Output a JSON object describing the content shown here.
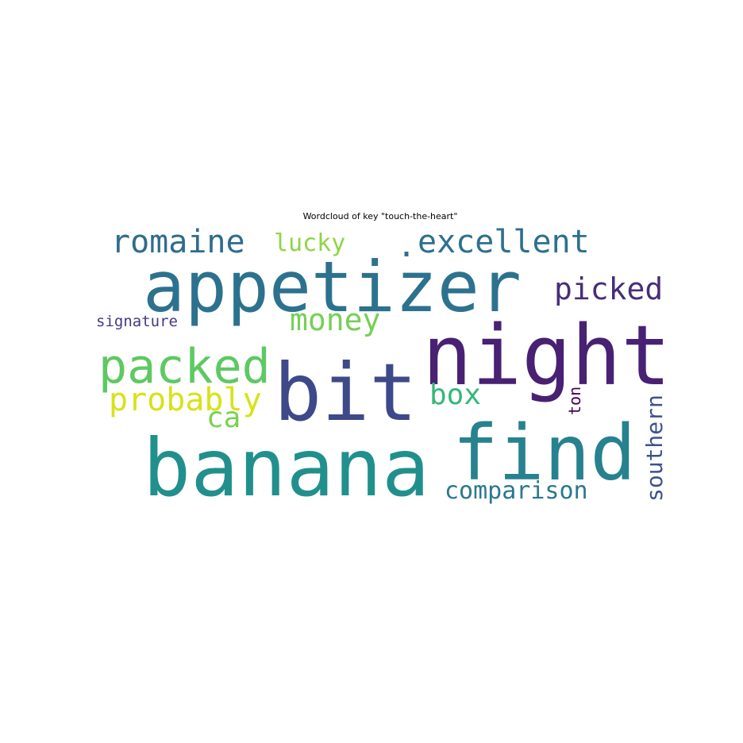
{
  "title": "Wordcloud of key \"touch-the-heart\"",
  "words": [
    {
      "key": "appetizer",
      "text": "appetizer",
      "color": "#2c728e"
    },
    {
      "key": "banana",
      "text": "banana",
      "color": "#21908d"
    },
    {
      "key": "night",
      "text": "night",
      "color": "#482173"
    },
    {
      "key": "bit",
      "text": "bit",
      "color": "#3e4989"
    },
    {
      "key": "find",
      "text": "find",
      "color": "#26828e"
    },
    {
      "key": "packed",
      "text": "packed",
      "color": "#5ec962"
    },
    {
      "key": "romaine",
      "text": "romaine",
      "color": "#2f6c8e"
    },
    {
      "key": "excellent",
      "text": "excellent",
      "color": "#2d708e"
    },
    {
      "key": "picked",
      "text": "picked",
      "color": "#472d7b"
    },
    {
      "key": "money",
      "text": "money",
      "color": "#75d054"
    },
    {
      "key": "lucky",
      "text": "lucky",
      "color": "#8ed645"
    },
    {
      "key": "probably",
      "text": "probably",
      "color": "#d8e219"
    },
    {
      "key": "ca",
      "text": "ca",
      "color": "#7ad151"
    },
    {
      "key": "box",
      "text": "box",
      "color": "#35b779"
    },
    {
      "key": "comparison",
      "text": "comparison",
      "color": "#2a788e"
    },
    {
      "key": "southern",
      "text": "southern",
      "color": "#3b528b"
    },
    {
      "key": "signature",
      "text": "signature",
      "color": "#443983"
    },
    {
      "key": "ton",
      "text": "ton",
      "color": "#440154"
    },
    {
      "key": "dot",
      "text": ".",
      "color": "#2c728e"
    }
  ]
}
